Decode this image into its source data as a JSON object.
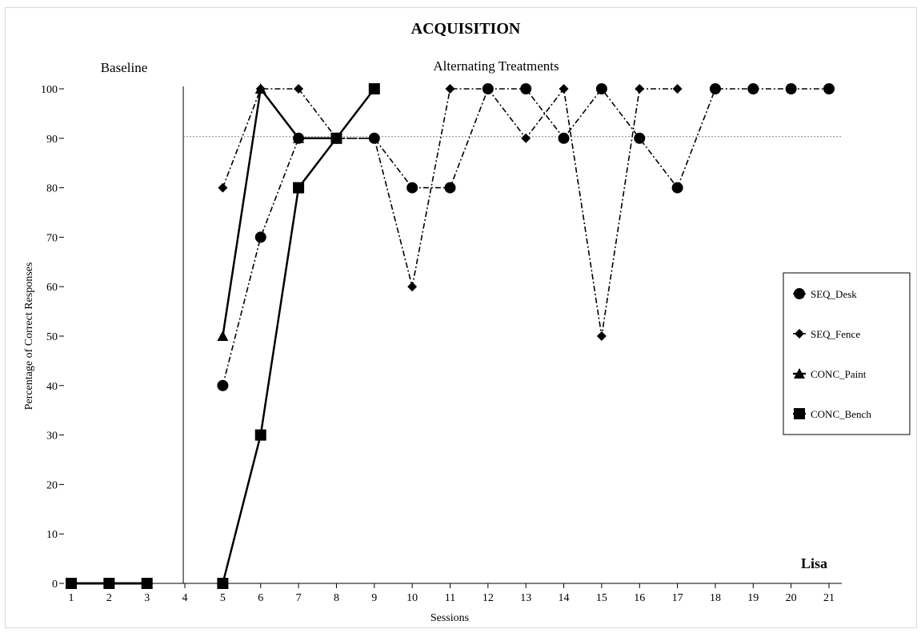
{
  "chart_data": {
    "type": "line",
    "title": "ACQUISITION",
    "xlabel": "Sessions",
    "ylabel": "Percentage of Correct Responses",
    "x": [
      1,
      2,
      3,
      4,
      5,
      6,
      7,
      8,
      9,
      10,
      11,
      12,
      13,
      14,
      15,
      16,
      17,
      18,
      19,
      20,
      21
    ],
    "xlim": [
      1,
      21
    ],
    "ylim": [
      0,
      100
    ],
    "yticks": [
      0,
      10,
      20,
      30,
      40,
      50,
      60,
      70,
      80,
      90,
      100
    ],
    "xticks": [
      1,
      2,
      3,
      4,
      5,
      6,
      7,
      8,
      9,
      10,
      11,
      12,
      13,
      14,
      15,
      16,
      17,
      18,
      19,
      20,
      21
    ],
    "phases": [
      {
        "label": "Baseline",
        "sessions": [
          1,
          3
        ]
      },
      {
        "label": "Alternating Treatments",
        "sessions": [
          5,
          21
        ]
      }
    ],
    "phase_change_line_x": 4,
    "criterion_line_y": 90,
    "participant": "Lisa",
    "legend_position": "right",
    "series": [
      {
        "name": "SEQ_Desk",
        "marker": "circle",
        "line_style": "dash-dot",
        "x": [
          1,
          2,
          3,
          5,
          6,
          7,
          8,
          9,
          10,
          11,
          12,
          13,
          14,
          15,
          16,
          17,
          18,
          19,
          20,
          21
        ],
        "y": [
          0,
          0,
          0,
          40,
          70,
          90,
          90,
          90,
          80,
          80,
          100,
          100,
          90,
          100,
          90,
          80,
          100,
          100,
          100,
          100
        ],
        "baseline_points": 3
      },
      {
        "name": "SEQ_Fence",
        "marker": "diamond",
        "line_style": "dash-dot",
        "x": [
          1,
          2,
          3,
          5,
          6,
          7,
          8,
          9,
          10,
          11,
          12,
          13,
          14,
          15,
          16,
          17
        ],
        "y": [
          0,
          0,
          0,
          80,
          100,
          100,
          90,
          90,
          60,
          100,
          100,
          90,
          100,
          50,
          100,
          100
        ],
        "baseline_points": 3
      },
      {
        "name": "CONC_Paint",
        "marker": "triangle",
        "line_style": "solid",
        "x": [
          1,
          2,
          3,
          5,
          6,
          7,
          8
        ],
        "y": [
          0,
          0,
          0,
          50,
          100,
          90,
          90
        ],
        "baseline_points": 3
      },
      {
        "name": "CONC_Bench",
        "marker": "square",
        "line_style": "solid",
        "x": [
          1,
          2,
          3,
          5,
          6,
          7,
          8,
          9
        ],
        "y": [
          0,
          0,
          0,
          0,
          30,
          80,
          90,
          100
        ],
        "baseline_points": 3
      }
    ],
    "colors": {
      "line": "#000000",
      "criterion": "#7f7f7f",
      "frame": "#d9d9d9"
    }
  }
}
